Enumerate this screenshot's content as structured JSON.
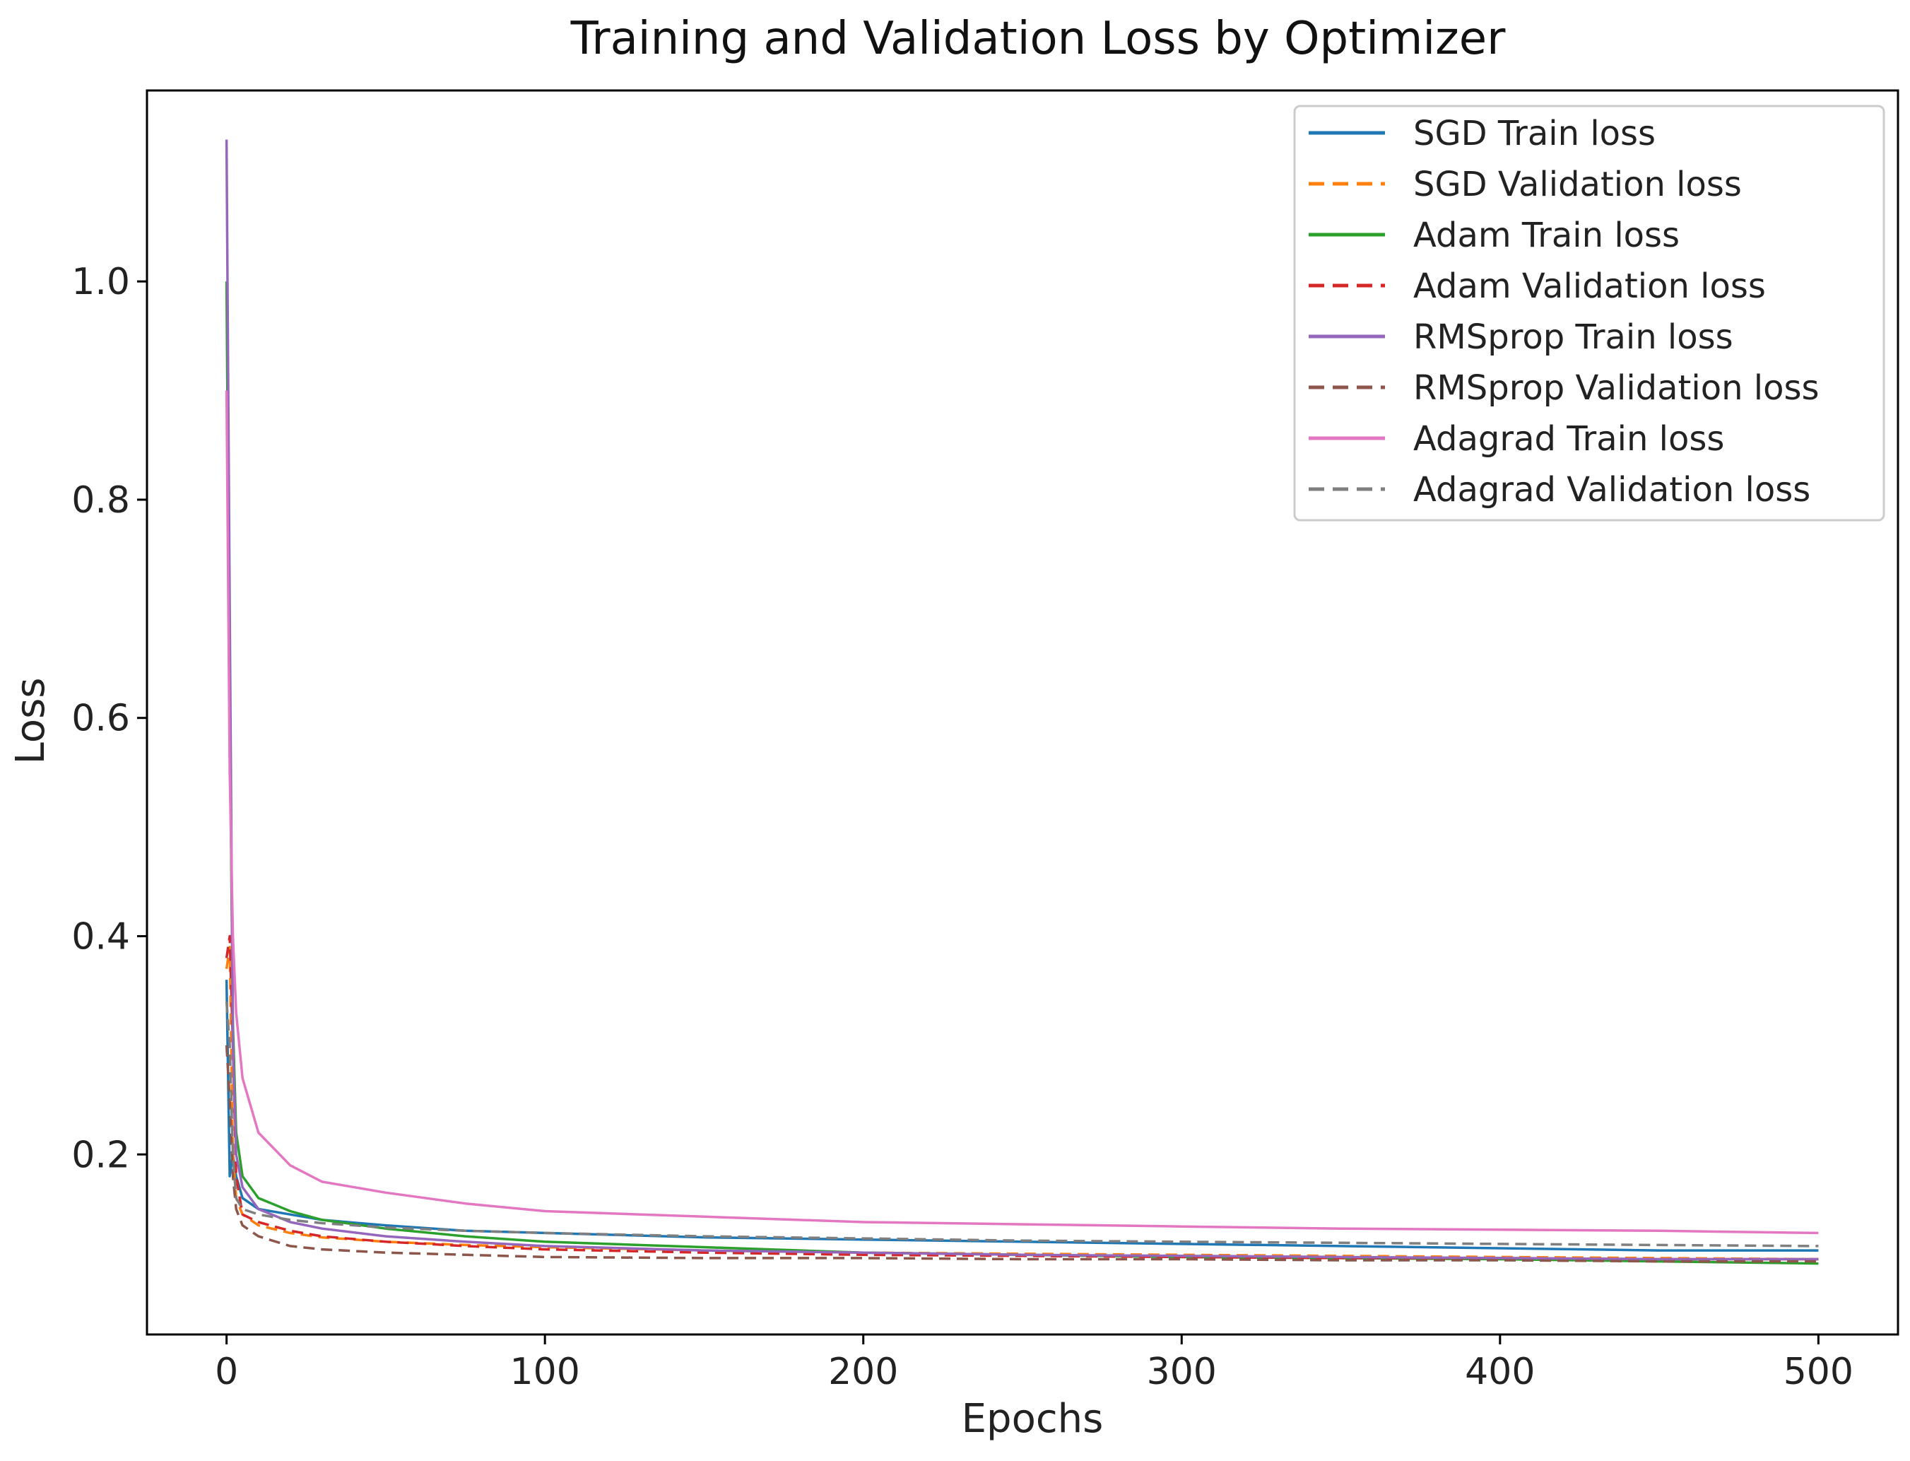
{
  "chart_data": {
    "type": "line",
    "title": "Training and Validation Loss by Optimizer",
    "xlabel": "Epochs",
    "ylabel": "Loss",
    "xlim": [
      -25,
      525
    ],
    "ylim": [
      0.035,
      1.175
    ],
    "xticks": [
      0,
      100,
      200,
      300,
      400,
      500
    ],
    "yticks": [
      0.2,
      0.4,
      0.6,
      0.8,
      1.0
    ],
    "xtick_labels": [
      "0",
      "100",
      "200",
      "300",
      "400",
      "500"
    ],
    "ytick_labels": [
      "0.2",
      "0.4",
      "0.6",
      "0.8",
      "1.0"
    ],
    "grid": false,
    "legend_position": "top-right",
    "series": [
      {
        "name": "SGD Train loss",
        "color": "#1f77b4",
        "dash": "solid",
        "x": [
          0,
          1,
          2,
          3,
          5,
          10,
          20,
          30,
          50,
          75,
          100,
          150,
          200,
          250,
          300,
          350,
          400,
          450,
          500
        ],
        "y": [
          0.36,
          0.18,
          0.2,
          0.18,
          0.16,
          0.15,
          0.145,
          0.14,
          0.135,
          0.13,
          0.128,
          0.124,
          0.122,
          0.12,
          0.118,
          0.116,
          0.114,
          0.112,
          0.112
        ]
      },
      {
        "name": "SGD Validation loss",
        "color": "#ff7f0e",
        "dash": "dashed",
        "x": [
          0,
          1,
          2,
          3,
          5,
          10,
          20,
          30,
          50,
          75,
          100,
          150,
          200,
          250,
          300,
          350,
          400,
          450,
          500
        ],
        "y": [
          0.37,
          0.39,
          0.2,
          0.16,
          0.145,
          0.135,
          0.128,
          0.124,
          0.12,
          0.117,
          0.115,
          0.112,
          0.11,
          0.109,
          0.108,
          0.107,
          0.106,
          0.105,
          0.104
        ]
      },
      {
        "name": "Adam Train loss",
        "color": "#2ca02c",
        "dash": "solid",
        "x": [
          0,
          1,
          2,
          3,
          5,
          10,
          20,
          30,
          50,
          75,
          100,
          150,
          200,
          250,
          300,
          350,
          400,
          450,
          500
        ],
        "y": [
          1.0,
          0.6,
          0.32,
          0.22,
          0.18,
          0.16,
          0.148,
          0.14,
          0.132,
          0.125,
          0.12,
          0.115,
          0.11,
          0.108,
          0.106,
          0.105,
          0.104,
          0.102,
          0.1
        ]
      },
      {
        "name": "Adam Validation loss",
        "color": "#d62728",
        "dash": "dashed",
        "x": [
          0,
          1,
          2,
          3,
          5,
          10,
          20,
          30,
          50,
          75,
          100,
          150,
          200,
          250,
          300,
          350,
          400,
          450,
          500
        ],
        "y": [
          0.38,
          0.4,
          0.3,
          0.18,
          0.145,
          0.138,
          0.13,
          0.125,
          0.12,
          0.116,
          0.113,
          0.11,
          0.108,
          0.107,
          0.106,
          0.105,
          0.105,
          0.104,
          0.104
        ]
      },
      {
        "name": "RMSprop Train loss",
        "color": "#9467bd",
        "dash": "solid",
        "x": [
          0,
          1,
          2,
          3,
          5,
          10,
          20,
          30,
          50,
          75,
          100,
          150,
          200,
          250,
          300,
          350,
          400,
          450,
          500
        ],
        "y": [
          1.13,
          0.7,
          0.3,
          0.2,
          0.17,
          0.15,
          0.138,
          0.132,
          0.125,
          0.12,
          0.116,
          0.112,
          0.11,
          0.108,
          0.107,
          0.106,
          0.105,
          0.104,
          0.104
        ]
      },
      {
        "name": "RMSprop Validation loss",
        "color": "#8c564b",
        "dash": "dashed",
        "x": [
          0,
          1,
          2,
          3,
          5,
          10,
          20,
          30,
          50,
          75,
          100,
          150,
          200,
          250,
          300,
          350,
          400,
          450,
          500
        ],
        "y": [
          0.3,
          0.25,
          0.18,
          0.15,
          0.135,
          0.125,
          0.116,
          0.113,
          0.11,
          0.108,
          0.106,
          0.105,
          0.105,
          0.104,
          0.104,
          0.103,
          0.103,
          0.102,
          0.102
        ]
      },
      {
        "name": "Adagrad Train loss",
        "color": "#e377c2",
        "dash": "solid",
        "x": [
          0,
          1,
          2,
          3,
          5,
          10,
          20,
          30,
          50,
          75,
          100,
          150,
          200,
          250,
          300,
          350,
          400,
          450,
          500
        ],
        "y": [
          0.9,
          0.55,
          0.4,
          0.33,
          0.27,
          0.22,
          0.19,
          0.175,
          0.165,
          0.155,
          0.148,
          0.143,
          0.138,
          0.136,
          0.134,
          0.132,
          0.131,
          0.13,
          0.128
        ]
      },
      {
        "name": "Adagrad Validation loss",
        "color": "#7f7f7f",
        "dash": "dashed",
        "x": [
          0,
          1,
          2,
          3,
          5,
          10,
          20,
          30,
          50,
          75,
          100,
          150,
          200,
          250,
          300,
          350,
          400,
          450,
          500
        ],
        "y": [
          0.34,
          0.3,
          0.2,
          0.16,
          0.15,
          0.145,
          0.14,
          0.137,
          0.133,
          0.13,
          0.128,
          0.125,
          0.123,
          0.121,
          0.12,
          0.119,
          0.118,
          0.117,
          0.116
        ]
      }
    ]
  }
}
